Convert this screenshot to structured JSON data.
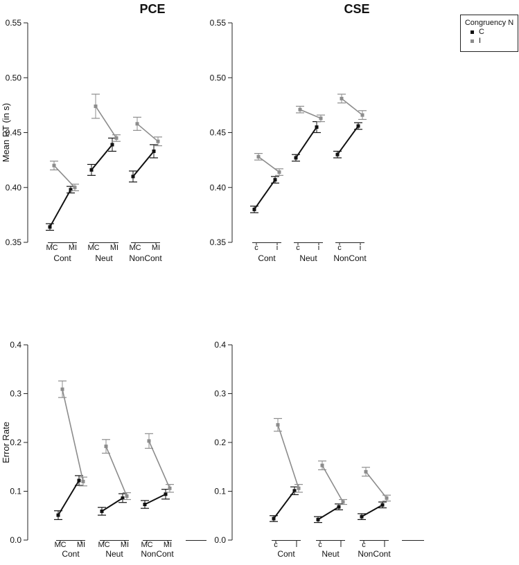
{
  "legend": {
    "title": "Congruency N",
    "items": [
      {
        "label": "C",
        "color": "#111111"
      },
      {
        "label": "I",
        "color": "#8c8c8c"
      }
    ]
  },
  "chart_data": [
    {
      "type": "line",
      "title": "PCE",
      "xlabel": "",
      "ylabel": "Mean RT (in s)",
      "ylim": [
        0.35,
        0.55
      ],
      "yticks": [
        0.35,
        0.4,
        0.45,
        0.5,
        0.55
      ],
      "ytick_labels": [
        "0.35",
        "0.40",
        "0.45",
        "0.50",
        "0.55"
      ],
      "groups": [
        "Cont",
        "Neut",
        "NonCont"
      ],
      "categories": [
        "MC",
        "MI"
      ],
      "series": [
        {
          "name": "C",
          "color": "#111111",
          "values": [
            [
              0.364,
              0.398
            ],
            [
              0.416,
              0.439
            ],
            [
              0.41,
              0.433
            ]
          ],
          "errors": [
            [
              0.003,
              0.003
            ],
            [
              0.005,
              0.006
            ],
            [
              0.005,
              0.006
            ]
          ]
        },
        {
          "name": "I",
          "color": "#8c8c8c",
          "values": [
            [
              0.42,
              0.4
            ],
            [
              0.474,
              0.445
            ],
            [
              0.458,
              0.442
            ]
          ],
          "errors": [
            [
              0.004,
              0.003
            ],
            [
              0.011,
              0.003
            ],
            [
              0.006,
              0.004
            ]
          ]
        }
      ]
    },
    {
      "type": "line",
      "title": "CSE",
      "xlabel": "",
      "ylabel": "",
      "ylim": [
        0.35,
        0.55
      ],
      "yticks": [
        0.35,
        0.4,
        0.45,
        0.5,
        0.55
      ],
      "ytick_labels": [
        "0.35",
        "0.40",
        "0.45",
        "0.50",
        "0.55"
      ],
      "groups": [
        "Cont",
        "Neut",
        "NonCont"
      ],
      "categories": [
        "c",
        "i"
      ],
      "series": [
        {
          "name": "C",
          "color": "#111111",
          "values": [
            [
              0.38,
              0.407
            ],
            [
              0.427,
              0.455
            ],
            [
              0.43,
              0.456
            ]
          ],
          "errors": [
            [
              0.003,
              0.003
            ],
            [
              0.003,
              0.005
            ],
            [
              0.003,
              0.003
            ]
          ]
        },
        {
          "name": "I",
          "color": "#8c8c8c",
          "values": [
            [
              0.428,
              0.414
            ],
            [
              0.471,
              0.463
            ],
            [
              0.481,
              0.466
            ]
          ],
          "errors": [
            [
              0.003,
              0.003
            ],
            [
              0.003,
              0.003
            ],
            [
              0.004,
              0.004
            ]
          ]
        }
      ]
    },
    {
      "type": "line",
      "title": "",
      "xlabel": "",
      "ylabel": "Error Rate",
      "ylim": [
        0.0,
        0.4
      ],
      "yticks": [
        0.0,
        0.1,
        0.2,
        0.3,
        0.4
      ],
      "ytick_labels": [
        "0.0",
        "0.1",
        "0.2",
        "0.3",
        "0.4"
      ],
      "groups": [
        "Cont",
        "Neut",
        "NonCont"
      ],
      "categories": [
        "MC",
        "MI"
      ],
      "series": [
        {
          "name": "C",
          "color": "#111111",
          "values": [
            [
              0.051,
              0.122
            ],
            [
              0.059,
              0.086
            ],
            [
              0.073,
              0.094
            ]
          ],
          "errors": [
            [
              0.009,
              0.01
            ],
            [
              0.008,
              0.009
            ],
            [
              0.008,
              0.01
            ]
          ]
        },
        {
          "name": "I",
          "color": "#8c8c8c",
          "values": [
            [
              0.309,
              0.12
            ],
            [
              0.192,
              0.09
            ],
            [
              0.203,
              0.106
            ]
          ],
          "errors": [
            [
              0.017,
              0.009
            ],
            [
              0.014,
              0.007
            ],
            [
              0.015,
              0.008
            ]
          ]
        }
      ]
    },
    {
      "type": "line",
      "title": "",
      "xlabel": "",
      "ylabel": "",
      "ylim": [
        0.0,
        0.4
      ],
      "yticks": [
        0.0,
        0.1,
        0.2,
        0.3,
        0.4
      ],
      "ytick_labels": [
        "0.0",
        "0.1",
        "0.2",
        "0.3",
        "0.4"
      ],
      "groups": [
        "Cont",
        "Neut",
        "NonCont"
      ],
      "categories": [
        "c",
        "i"
      ],
      "series": [
        {
          "name": "C",
          "color": "#111111",
          "values": [
            [
              0.044,
              0.101
            ],
            [
              0.042,
              0.068
            ],
            [
              0.048,
              0.072
            ]
          ],
          "errors": [
            [
              0.006,
              0.008
            ],
            [
              0.006,
              0.006
            ],
            [
              0.006,
              0.006
            ]
          ]
        },
        {
          "name": "I",
          "color": "#8c8c8c",
          "values": [
            [
              0.236,
              0.106
            ],
            [
              0.153,
              0.078
            ],
            [
              0.14,
              0.086
            ]
          ],
          "errors": [
            [
              0.013,
              0.008
            ],
            [
              0.009,
              0.005
            ],
            [
              0.009,
              0.006
            ]
          ]
        }
      ]
    }
  ]
}
